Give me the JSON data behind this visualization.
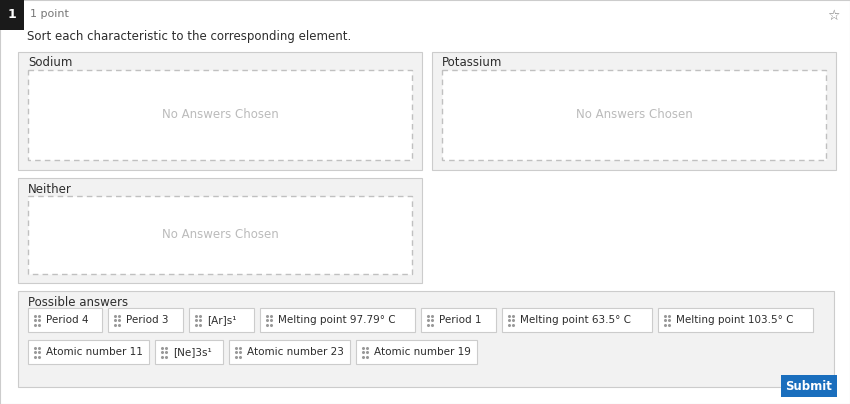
{
  "bg_color": "#f0f0f0",
  "card_bg": "#ffffff",
  "section_bg": "#f2f2f2",
  "border_color": "#cccccc",
  "dashed_color": "#c0c0c0",
  "text_dark": "#2d2d2d",
  "text_gray": "#777777",
  "text_light": "#bbbbbb",
  "question_num_bg": "#1a1a1a",
  "question_num_text": "#ffffff",
  "submit_bg": "#1a6ebd",
  "submit_text": "#ffffff",
  "title": "1 point",
  "instruction": "Sort each characteristic to the corresponding element.",
  "categories": [
    "Sodium",
    "Potassium",
    "Neither"
  ],
  "no_answers_text": "No Answers Chosen",
  "possible_answers_label": "Possible answers",
  "answers_row1": [
    "Period 4",
    "Period 3",
    "[Ar]s¹",
    "Melting point 97.79° C",
    "Period 1",
    "Melting point 63.5° C",
    "Melting point 103.5° C"
  ],
  "answers_row2": [
    "Atomic number 11",
    "[Ne]3s¹",
    "Atomic number 23",
    "Atomic number 19"
  ]
}
